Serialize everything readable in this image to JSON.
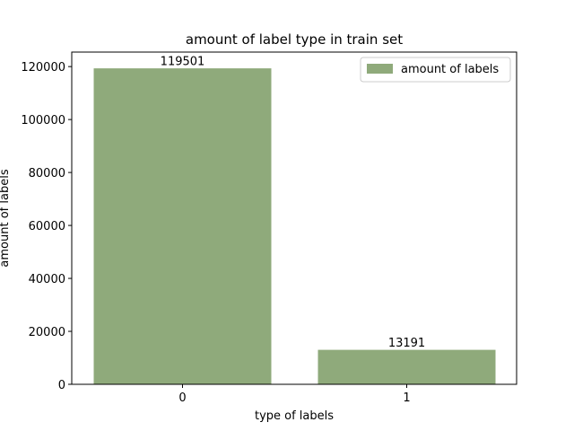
{
  "chart_data": {
    "type": "bar",
    "title": "amount of label type in train set",
    "xlabel": "type of labels",
    "ylabel": "amount of labels",
    "categories": [
      "0",
      "1"
    ],
    "series": [
      {
        "name": "amount of labels",
        "values": [
          119501,
          13191
        ],
        "color": "#8faa7b"
      }
    ],
    "data_labels": [
      "119501",
      "13191"
    ],
    "y_ticks": [
      0,
      20000,
      40000,
      60000,
      80000,
      100000,
      120000
    ],
    "y_tick_labels": [
      "0",
      "20000",
      "40000",
      "60000",
      "80000",
      "100000",
      "120000"
    ],
    "ylim": [
      0,
      125476
    ],
    "grid": false,
    "legend_position": "top-right"
  }
}
